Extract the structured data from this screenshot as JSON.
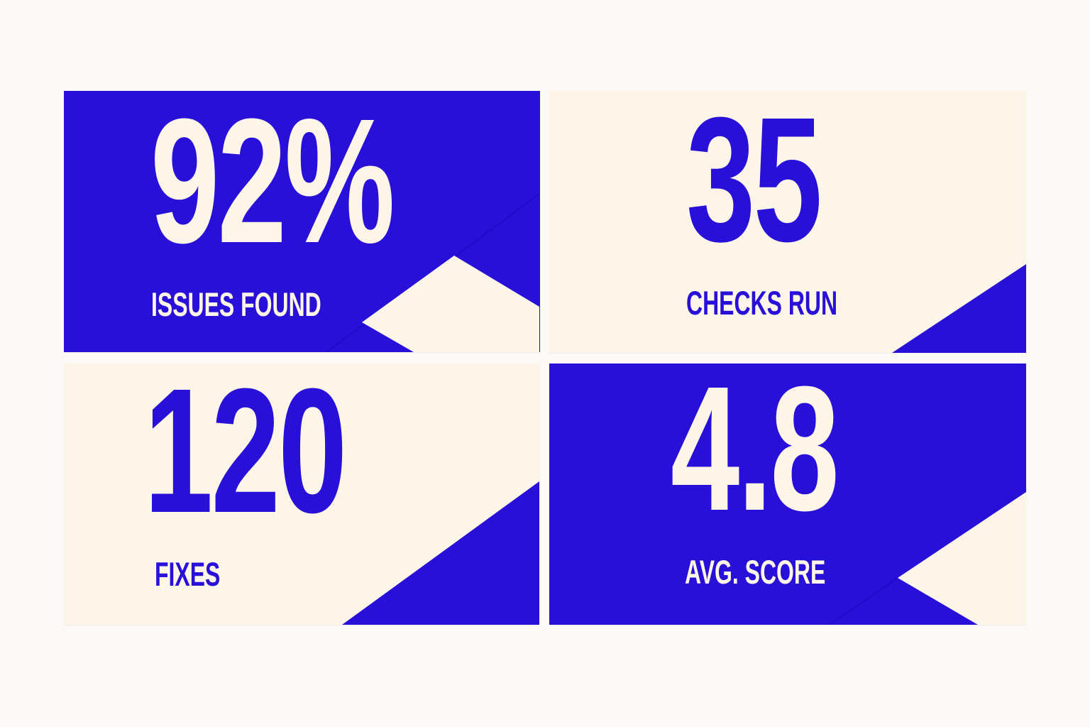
{
  "colors": {
    "blue": "#2810d8",
    "cream": "#fdf6e8",
    "background": "#fcfaf6"
  },
  "cards": [
    {
      "value": "92%",
      "label": "ISSUES FOUND",
      "theme": "blue"
    },
    {
      "value": "35",
      "label": "CHECKS RUN",
      "theme": "cream"
    },
    {
      "value": "120",
      "label": "FIXES",
      "theme": "cream"
    },
    {
      "value": "4.8",
      "label": "AVG. SCORE",
      "theme": "blue"
    }
  ]
}
